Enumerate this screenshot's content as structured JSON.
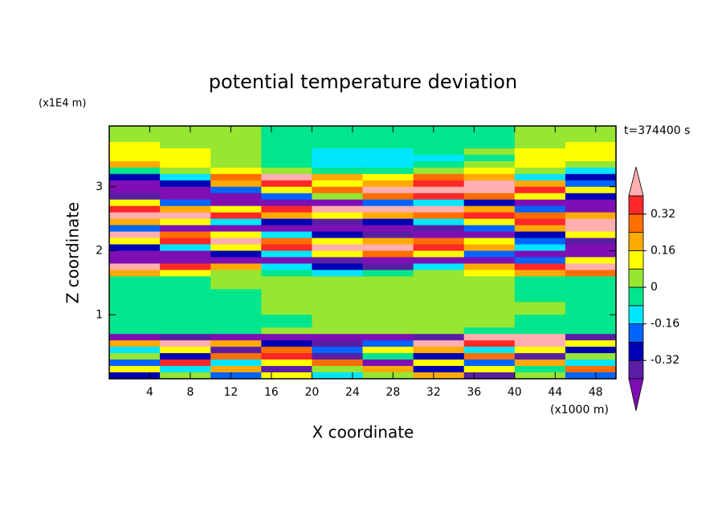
{
  "chart_data": {
    "type": "contourf",
    "title": "potential temperature deviation",
    "xlabel": "X coordinate",
    "ylabel": "Z coordinate",
    "x_unit": "(x1000 m)",
    "y_unit": "(x1E4 m)",
    "annotation": "t=374400 s",
    "xlim": [
      0,
      50
    ],
    "ylim": [
      0,
      3.95
    ],
    "xticks": [
      4,
      8,
      12,
      16,
      20,
      24,
      28,
      32,
      36,
      40,
      44,
      48
    ],
    "yticks": [
      1,
      2,
      3
    ],
    "x": [
      2.5,
      7.5,
      12.5,
      17.5,
      22.5,
      27.5,
      32.5,
      37.5,
      42.5,
      47.5
    ],
    "y": [
      3.95,
      3.85,
      3.75,
      3.65,
      3.55,
      3.45,
      3.35,
      3.25,
      3.15,
      3.05,
      2.95,
      2.85,
      2.75,
      2.65,
      2.55,
      2.45,
      2.35,
      2.25,
      2.15,
      2.05,
      1.95,
      1.85,
      1.75,
      1.65,
      1.55,
      1.45,
      1.35,
      1.25,
      1.15,
      1.05,
      0.95,
      0.85,
      0.75,
      0.65,
      0.55,
      0.45,
      0.35,
      0.25,
      0.15,
      0.05
    ],
    "values": [
      [
        0.04,
        0.04,
        0.04,
        -0.04,
        -0.04,
        -0.04,
        -0.04,
        -0.04,
        0.04,
        0.04
      ],
      [
        0.04,
        0.04,
        0.04,
        -0.04,
        -0.04,
        -0.04,
        -0.04,
        -0.04,
        0.04,
        0.04
      ],
      [
        0.04,
        0.04,
        0.04,
        -0.04,
        -0.04,
        -0.04,
        -0.04,
        -0.04,
        0.04,
        0.04
      ],
      [
        0.12,
        0.04,
        0.04,
        -0.04,
        -0.04,
        -0.04,
        -0.04,
        -0.04,
        0.04,
        0.12
      ],
      [
        0.12,
        0.12,
        0.04,
        -0.04,
        -0.12,
        -0.12,
        -0.04,
        0.04,
        0.12,
        0.12
      ],
      [
        0.12,
        0.12,
        0.04,
        -0.04,
        -0.12,
        -0.12,
        -0.12,
        -0.04,
        0.12,
        0.12
      ],
      [
        0.2,
        0.12,
        0.04,
        -0.04,
        -0.12,
        -0.12,
        -0.04,
        0.04,
        0.12,
        0.04
      ],
      [
        -0.04,
        0.04,
        0.12,
        0.04,
        -0.04,
        -0.04,
        0.04,
        0.12,
        0.04,
        -0.12
      ],
      [
        -0.28,
        -0.12,
        0.28,
        0.45,
        0.2,
        0.12,
        0.28,
        0.2,
        -0.12,
        -0.28
      ],
      [
        -0.45,
        -0.28,
        0.2,
        0.36,
        0.12,
        0.2,
        0.36,
        0.45,
        0.2,
        -0.2
      ],
      [
        -0.45,
        -0.45,
        -0.2,
        0.12,
        0.28,
        0.45,
        0.45,
        0.45,
        0.36,
        0.12
      ],
      [
        -0.36,
        -0.45,
        -0.45,
        -0.2,
        0.04,
        0.28,
        0.36,
        0.28,
        0.12,
        -0.28
      ],
      [
        0.12,
        -0.2,
        -0.45,
        -0.45,
        -0.45,
        -0.2,
        -0.12,
        -0.28,
        -0.45,
        -0.45
      ],
      [
        0.36,
        0.2,
        0.12,
        0.36,
        0.45,
        0.45,
        0.45,
        0.2,
        -0.2,
        -0.45
      ],
      [
        0.45,
        0.45,
        0.36,
        0.2,
        0.12,
        0.2,
        0.28,
        0.36,
        0.28,
        0.2
      ],
      [
        0.2,
        0.12,
        -0.12,
        -0.28,
        -0.36,
        -0.28,
        -0.12,
        0.12,
        0.36,
        0.45
      ],
      [
        -0.2,
        -0.45,
        -0.45,
        -0.45,
        -0.45,
        -0.45,
        -0.36,
        -0.2,
        0.2,
        0.45
      ],
      [
        0.45,
        0.28,
        0.12,
        -0.12,
        -0.28,
        -0.36,
        -0.45,
        -0.45,
        -0.28,
        0.12
      ],
      [
        0.12,
        0.36,
        0.45,
        0.28,
        0.12,
        0.2,
        0.28,
        0.12,
        -0.2,
        -0.36
      ],
      [
        -0.28,
        -0.12,
        0.12,
        0.36,
        0.45,
        0.45,
        0.36,
        0.2,
        -0.12,
        -0.45
      ],
      [
        -0.45,
        -0.45,
        -0.28,
        -0.12,
        0.12,
        0.28,
        0.12,
        -0.2,
        -0.45,
        -0.45
      ],
      [
        -0.45,
        -0.45,
        -0.45,
        -0.45,
        -0.36,
        -0.45,
        -0.45,
        -0.45,
        -0.2,
        0.12
      ],
      [
        0.45,
        0.36,
        0.2,
        -0.12,
        -0.28,
        -0.36,
        -0.12,
        0.2,
        0.36,
        0.45
      ],
      [
        0.2,
        0.12,
        0.04,
        -0.04,
        -0.12,
        -0.04,
        0.04,
        0.12,
        0.2,
        0.28
      ],
      [
        -0.04,
        -0.04,
        0.04,
        0.04,
        0.04,
        0.04,
        0.04,
        0.04,
        -0.04,
        -0.04
      ],
      [
        -0.04,
        -0.04,
        0.04,
        0.04,
        0.04,
        0.04,
        0.04,
        0.04,
        -0.04,
        -0.04
      ],
      [
        -0.04,
        -0.04,
        -0.04,
        0.04,
        0.04,
        0.04,
        0.04,
        0.04,
        -0.04,
        -0.04
      ],
      [
        -0.04,
        -0.04,
        -0.04,
        0.04,
        0.04,
        0.04,
        0.04,
        0.04,
        -0.04,
        -0.04
      ],
      [
        -0.04,
        -0.04,
        -0.04,
        0.04,
        0.04,
        0.04,
        0.04,
        0.04,
        0.04,
        -0.04
      ],
      [
        -0.04,
        -0.04,
        -0.04,
        0.04,
        0.04,
        0.04,
        0.04,
        0.04,
        0.04,
        -0.04
      ],
      [
        -0.04,
        -0.04,
        -0.04,
        -0.04,
        0.04,
        0.04,
        0.04,
        0.04,
        -0.04,
        -0.04
      ],
      [
        -0.04,
        -0.04,
        -0.04,
        -0.04,
        0.04,
        0.04,
        0.04,
        0.04,
        -0.04,
        -0.04
      ],
      [
        -0.04,
        -0.04,
        -0.04,
        0.04,
        0.04,
        0.04,
        0.04,
        -0.04,
        -0.04,
        -0.04
      ],
      [
        -0.45,
        -0.36,
        -0.45,
        -0.45,
        -0.45,
        -0.45,
        -0.36,
        0.45,
        0.45,
        -0.36
      ],
      [
        0.2,
        0.45,
        0.2,
        -0.28,
        -0.36,
        -0.2,
        0.45,
        0.36,
        0.45,
        0.12
      ],
      [
        -0.12,
        0.12,
        -0.36,
        0.28,
        -0.2,
        0.12,
        0.2,
        -0.12,
        0.12,
        -0.28
      ],
      [
        0.04,
        -0.28,
        0.28,
        0.36,
        -0.36,
        -0.04,
        -0.28,
        0.28,
        -0.36,
        0.04
      ],
      [
        -0.2,
        0.36,
        -0.12,
        0.12,
        0.28,
        -0.45,
        0.12,
        -0.2,
        0.2,
        -0.12
      ],
      [
        0.12,
        -0.12,
        0.2,
        -0.36,
        0.04,
        0.2,
        -0.28,
        0.12,
        -0.04,
        0.28
      ],
      [
        -0.28,
        0.04,
        -0.2,
        0.12,
        -0.12,
        0.04,
        0.2,
        -0.36,
        0.04,
        -0.2
      ]
    ],
    "levels": [
      -0.4,
      -0.32,
      -0.24,
      -0.16,
      -0.08,
      0,
      0.08,
      0.16,
      0.24,
      0.32,
      0.4
    ],
    "colors": [
      "#7d0fb4",
      "#5a1ea5",
      "#0000b4",
      "#0064ff",
      "#00e6ff",
      "#00e68c",
      "#96e632",
      "#ffff00",
      "#ffaa00",
      "#ff6e00",
      "#ff2828",
      "#ffafaf"
    ],
    "colorbar_ticks": [
      -0.32,
      -0.16,
      0,
      0.16,
      0.32
    ]
  }
}
